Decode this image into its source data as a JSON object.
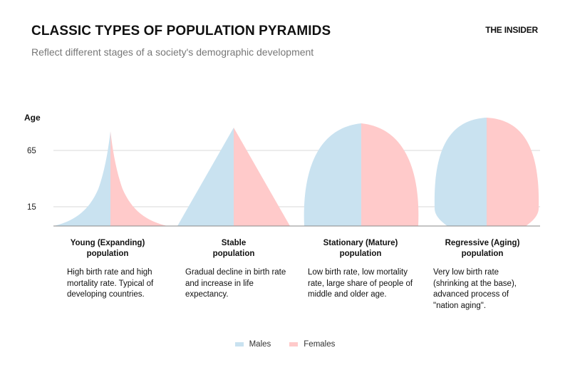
{
  "header": {
    "title": "CLASSIC TYPES OF POPULATION PYRAMIDS",
    "subtitle": "Reflect different stages of a society's demographic development",
    "brand": "THE INSIDER"
  },
  "colors": {
    "males": "#c9e2f0",
    "females": "#ffcaca",
    "grid": "#d9d9d9",
    "axis": "#888888"
  },
  "chart_data": {
    "type": "area",
    "ylabel": "Age",
    "y_ticks": [
      65,
      15
    ],
    "legend": {
      "position": "bottom-center",
      "entries": [
        "Males",
        "Females"
      ]
    },
    "grid": true,
    "panels": [
      {
        "title": "Young (Expanding)\npopulation",
        "description": "High birth rate and high mortality rate. Typical of developing countries.",
        "shape": "expanding"
      },
      {
        "title": "Stable\npopulation",
        "description": "Gradual decline in birth rate and increase in life expectancy.",
        "shape": "stable"
      },
      {
        "title": "Stationary (Mature)\npopulation",
        "description": "Low birth rate, low mortality rate, large share of people of middle and older age.",
        "shape": "stationary"
      },
      {
        "title": "Regressive (Aging)\npopulation",
        "description": "Very low birth rate (shrinking at the base), advanced process of \"nation aging\".",
        "shape": "regressive"
      }
    ]
  }
}
